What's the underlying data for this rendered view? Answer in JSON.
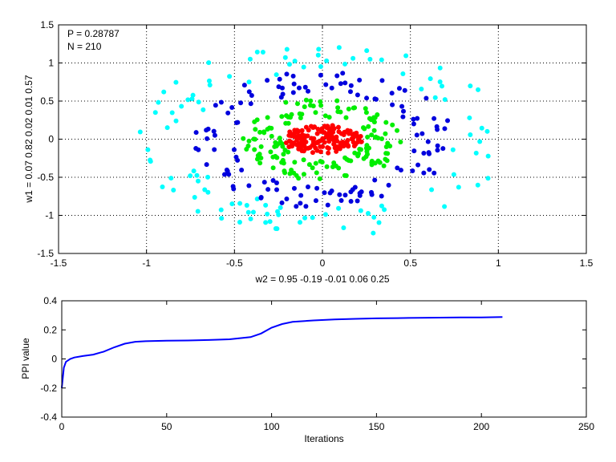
{
  "chart_data": [
    {
      "type": "scatter",
      "xlabel": "w2 = 0.95  -0.19  -0.01  0.06  0.25",
      "ylabel": "w1 = 0.07  0.82  0.02  0.01  0.57",
      "xlim": [
        -1.5,
        1.5
      ],
      "ylim": [
        -1.5,
        1.5
      ],
      "xticks": [
        "-1.5",
        "-1",
        "-0.5",
        "0",
        "0.5",
        "1",
        "1.5"
      ],
      "yticks": [
        "-1.5",
        "-1",
        "-0.5",
        "0",
        "0.5",
        "1",
        "1.5"
      ],
      "grid": true,
      "annotations": [
        "P = 0.28787",
        "N = 210"
      ],
      "series": [
        {
          "color": "#00ffff",
          "shape": "ring",
          "radius": [
            0.95,
            1.35
          ],
          "count": 110
        },
        {
          "color": "#0000dd",
          "shape": "ring",
          "radius": [
            0.65,
            0.95
          ],
          "count": 130
        },
        {
          "color": "#00ee00",
          "shape": "ring",
          "radius": [
            0.3,
            0.58
          ],
          "count": 150
        },
        {
          "color": "#ff0000",
          "shape": "disc",
          "radius": [
            0.0,
            0.22
          ],
          "count": 160
        }
      ]
    },
    {
      "type": "line",
      "xlabel": "Iterations",
      "ylabel": "PPI value",
      "xlim": [
        0,
        250
      ],
      "ylim": [
        -0.4,
        0.4
      ],
      "xticks": [
        "0",
        "50",
        "100",
        "150",
        "200",
        "250"
      ],
      "yticks": [
        "-0.4",
        "-0.2",
        "0",
        "0.2",
        "0.4"
      ],
      "grid": false,
      "line_color": "#0000ff",
      "x": [
        0,
        1,
        2,
        4,
        6,
        10,
        15,
        20,
        25,
        30,
        35,
        40,
        50,
        60,
        70,
        80,
        90,
        95,
        100,
        105,
        110,
        120,
        130,
        140,
        150,
        160,
        170,
        180,
        190,
        200,
        210
      ],
      "y": [
        -0.2,
        -0.06,
        -0.02,
        0.0,
        0.01,
        0.02,
        0.03,
        0.05,
        0.08,
        0.105,
        0.118,
        0.122,
        0.125,
        0.127,
        0.13,
        0.135,
        0.15,
        0.175,
        0.215,
        0.24,
        0.255,
        0.265,
        0.272,
        0.276,
        0.279,
        0.281,
        0.283,
        0.284,
        0.285,
        0.286,
        0.288
      ]
    }
  ]
}
